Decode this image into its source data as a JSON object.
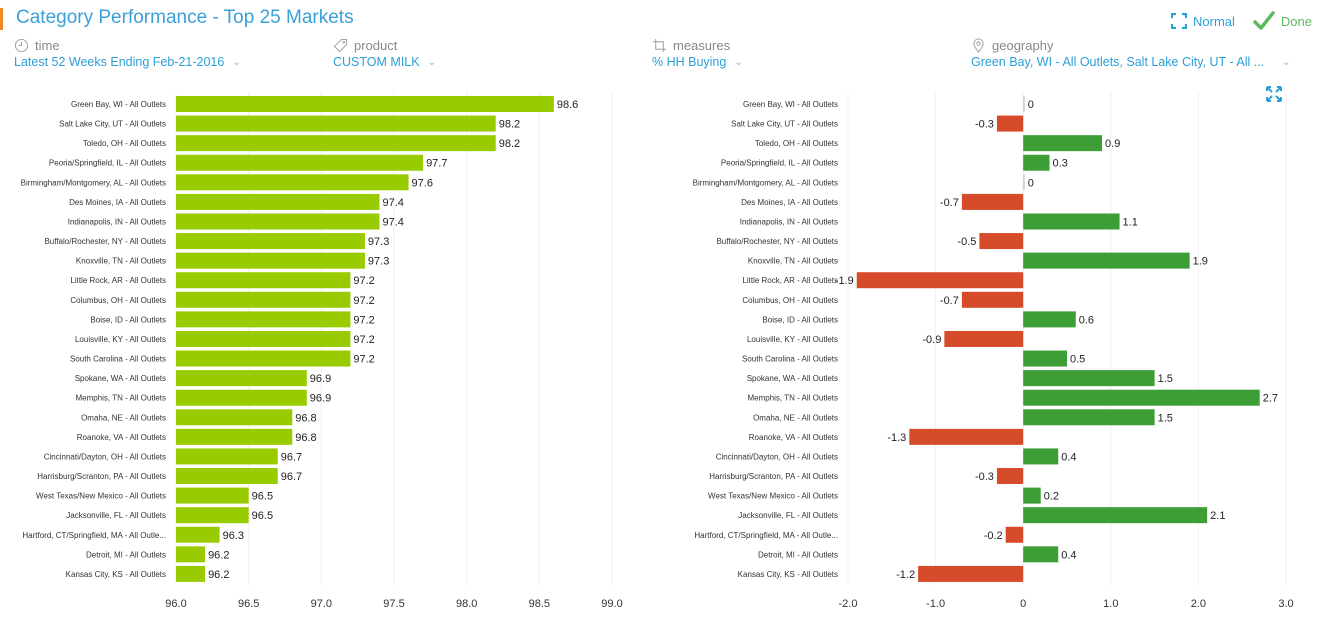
{
  "header": {
    "title": "Category Performance - Top 25 Markets",
    "actions": {
      "normal_label": "Normal",
      "done_label": "Done"
    }
  },
  "filters": [
    {
      "label": "time",
      "icon": "clock-icon",
      "value": "Latest 52 Weeks Ending Feb-21-2016"
    },
    {
      "label": "product",
      "icon": "tag-icon",
      "value": "CUSTOM MILK"
    },
    {
      "label": "measures",
      "icon": "crop-icon",
      "value": "% HH Buying"
    },
    {
      "label": "geography",
      "icon": "location-pin-icon",
      "value": "Green Bay, WI - All Outlets, Salt Lake City, UT - All ..."
    }
  ],
  "colors": {
    "accent": "#f08a24",
    "link": "#2a9fd8",
    "bar_primary": "#99cc00",
    "bar_positive": "#3d9e36",
    "bar_negative": "#d64b2a",
    "done_check": "#5cb85c"
  },
  "chart_data": [
    {
      "type": "bar",
      "orientation": "horizontal",
      "title": "",
      "xlabel": "",
      "ylabel": "",
      "xlim": [
        96.0,
        99.0
      ],
      "ticks": [
        "96.0",
        "96.5",
        "97.0",
        "97.5",
        "98.0",
        "98.5",
        "99.0"
      ],
      "tick_values": [
        96.0,
        96.5,
        97.0,
        97.5,
        98.0,
        98.5,
        99.0
      ],
      "grid": true,
      "categories": [
        "Green Bay, WI - All Outlets",
        "Salt Lake City, UT - All Outlets",
        "Toledo, OH - All Outlets",
        "Peoria/Springfield, IL - All Outlets",
        "Birmingham/Montgomery, AL - All Outlets",
        "Des Moines, IA - All Outlets",
        "Indianapolis, IN - All Outlets",
        "Buffalo/Rochester, NY - All Outlets",
        "Knoxville, TN - All Outlets",
        "Little Rock, AR - All Outlets",
        "Columbus, OH - All Outlets",
        "Boise, ID - All Outlets",
        "Louisville, KY - All Outlets",
        "South Carolina - All Outlets",
        "Spokane, WA - All Outlets",
        "Memphis, TN - All Outlets",
        "Omaha, NE - All Outlets",
        "Roanoke, VA - All Outlets",
        "Cincinnati/Dayton, OH - All Outlets",
        "Harrisburg/Scranton, PA - All Outlets",
        "West Texas/New Mexico - All Outlets",
        "Jacksonville, FL - All Outlets",
        "Hartford, CT/Springfield, MA - All Outle...",
        "Detroit, MI - All Outlets",
        "Kansas City, KS - All Outlets"
      ],
      "values": [
        98.6,
        98.2,
        98.2,
        97.7,
        97.6,
        97.4,
        97.4,
        97.3,
        97.3,
        97.2,
        97.2,
        97.2,
        97.2,
        97.2,
        96.9,
        96.9,
        96.8,
        96.8,
        96.7,
        96.7,
        96.5,
        96.5,
        96.3,
        96.2,
        96.2
      ],
      "value_labels": [
        "98.6",
        "98.2",
        "98.2",
        "97.7",
        "97.6",
        "97.4",
        "97.4",
        "97.3",
        "97.3",
        "97.2",
        "97.2",
        "97.2",
        "97.2",
        "97.2",
        "96.9",
        "96.9",
        "96.8",
        "96.8",
        "96.7",
        "96.7",
        "96.5",
        "96.5",
        "96.3",
        "96.2",
        "96.2"
      ]
    },
    {
      "type": "bar",
      "orientation": "horizontal",
      "title": "",
      "xlabel": "",
      "ylabel": "",
      "xlim": [
        -2.0,
        3.0
      ],
      "ticks": [
        "-2.0",
        "-1.0",
        "0",
        "1.0",
        "2.0",
        "3.0"
      ],
      "tick_values": [
        -2.0,
        -1.0,
        0,
        1.0,
        2.0,
        3.0
      ],
      "grid": true,
      "categories": [
        "Green Bay, WI - All Outlets",
        "Salt Lake City, UT - All Outlets",
        "Toledo, OH - All Outlets",
        "Peoria/Springfield, IL - All Outlets",
        "Birmingham/Montgomery, AL - All Outlets",
        "Des Moines, IA - All Outlets",
        "Indianapolis, IN - All Outlets",
        "Buffalo/Rochester, NY - All Outlets",
        "Knoxville, TN - All Outlets",
        "Little Rock, AR - All Outlets",
        "Columbus, OH - All Outlets",
        "Boise, ID - All Outlets",
        "Louisville, KY - All Outlets",
        "South Carolina - All Outlets",
        "Spokane, WA - All Outlets",
        "Memphis, TN - All Outlets",
        "Omaha, NE - All Outlets",
        "Roanoke, VA - All Outlets",
        "Cincinnati/Dayton, OH - All Outlets",
        "Harrisburg/Scranton, PA - All Outlets",
        "West Texas/New Mexico - All Outlets",
        "Jacksonville, FL - All Outlets",
        "Hartford, CT/Springfield, MA - All Outle...",
        "Detroit, MI - All Outlets",
        "Kansas City, KS - All Outlets"
      ],
      "values": [
        0,
        -0.3,
        0.9,
        0.3,
        0,
        -0.7,
        1.1,
        -0.5,
        1.9,
        -1.9,
        -0.7,
        0.6,
        -0.9,
        0.5,
        1.5,
        2.7,
        1.5,
        -1.3,
        0.4,
        -0.3,
        0.2,
        2.1,
        -0.2,
        0.4,
        -1.2
      ],
      "value_labels": [
        "0",
        "-0.3",
        "0.9",
        "0.3",
        "0",
        "-0.7",
        "1.1",
        "-0.5",
        "1.9",
        "-1.9",
        "-0.7",
        "0.6",
        "-0.9",
        "0.5",
        "1.5",
        "2.7",
        "1.5",
        "-1.3",
        "0.4",
        "-0.3",
        "0.2",
        "2.1",
        "-0.2",
        "0.4",
        "-1.2"
      ]
    }
  ]
}
